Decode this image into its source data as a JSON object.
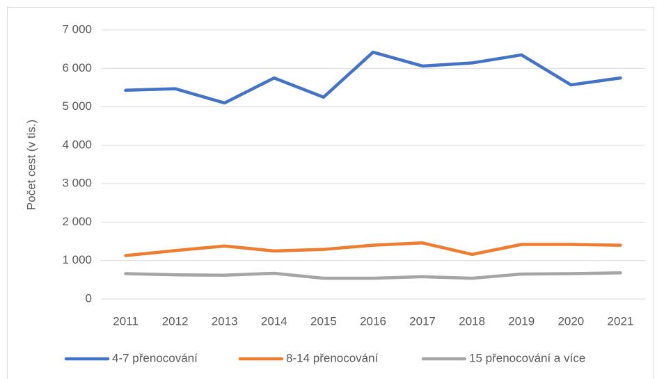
{
  "chart_data": {
    "type": "line",
    "y_label": "Počet cest (v tis.)",
    "categories": [
      "2011",
      "2012",
      "2013",
      "2014",
      "2015",
      "2016",
      "2017",
      "2018",
      "2019",
      "2020",
      "2021"
    ],
    "series": [
      {
        "name": "4-7 přenocování",
        "color": "#4472c4",
        "values": [
          5430,
          5470,
          5100,
          5750,
          5250,
          6420,
          6060,
          6140,
          6350,
          5570,
          5750
        ]
      },
      {
        "name": "8-14 přenocování",
        "color": "#ed7d31",
        "values": [
          1130,
          1260,
          1380,
          1250,
          1290,
          1400,
          1460,
          1160,
          1420,
          1420,
          1400
        ]
      },
      {
        "name": "15 přenocování a více",
        "color": "#a5a5a5",
        "values": [
          660,
          630,
          620,
          670,
          540,
          540,
          580,
          540,
          650,
          660,
          680
        ]
      }
    ],
    "ylim": [
      0,
      7000
    ],
    "yticks": [
      0,
      {
        "value": 1000,
        "label": "1 000"
      },
      {
        "value": 2000,
        "label": "2 000"
      },
      {
        "value": 3000,
        "label": "3 000"
      },
      {
        "value": 4000,
        "label": "4 000"
      },
      {
        "value": 5000,
        "label": "5 000"
      },
      {
        "value": 6000,
        "label": "6 000"
      },
      {
        "value": 7000,
        "label": "7 000"
      }
    ],
    "grid": true,
    "legend": "bottom"
  }
}
